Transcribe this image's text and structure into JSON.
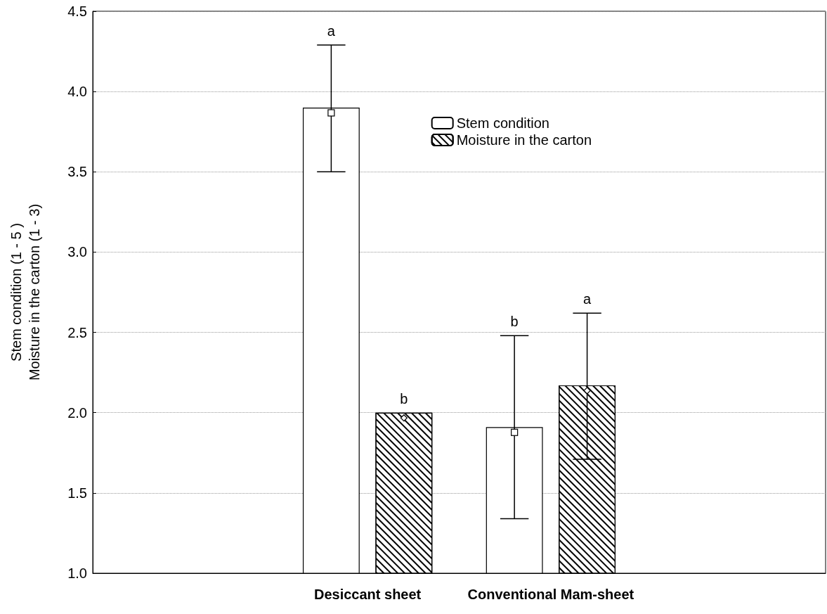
{
  "chart_data": {
    "type": "bar",
    "ylabel": "Stem condition (1 - 5 )\nMoisture in the carton (1 - 3)",
    "categories": [
      null,
      "Desiccant sheet",
      "Conventional Mam-sheet",
      null
    ],
    "series": [
      {
        "name": "Stem condition",
        "color": "#ffffff",
        "values": [
          null,
          3.9,
          1.91,
          null
        ],
        "errors": [
          null,
          [
            3.5,
            4.29
          ],
          [
            1.34,
            2.48
          ],
          null
        ]
      },
      {
        "name": "Moisture in the carton",
        "color": "#ffffff",
        "values": [
          null,
          2.0,
          2.17,
          null
        ],
        "errors": [
          null,
          null,
          [
            1.71,
            2.62
          ],
          null
        ]
      }
    ],
    "ylim": [
      1.0,
      4.5
    ],
    "yticks": [
      {
        "value": 1,
        "label": "1.0"
      },
      1.5,
      {
        "value": 2,
        "label": "2.0"
      },
      2.5,
      {
        "value": 3,
        "label": "3.0"
      },
      3.5,
      {
        "value": 4,
        "label": "4.0"
      },
      4.5
    ],
    "annotations": [
      "a",
      "b",
      "b",
      "a"
    ],
    "grid": "y",
    "legend": "top right",
    "marker": "square"
  }
}
